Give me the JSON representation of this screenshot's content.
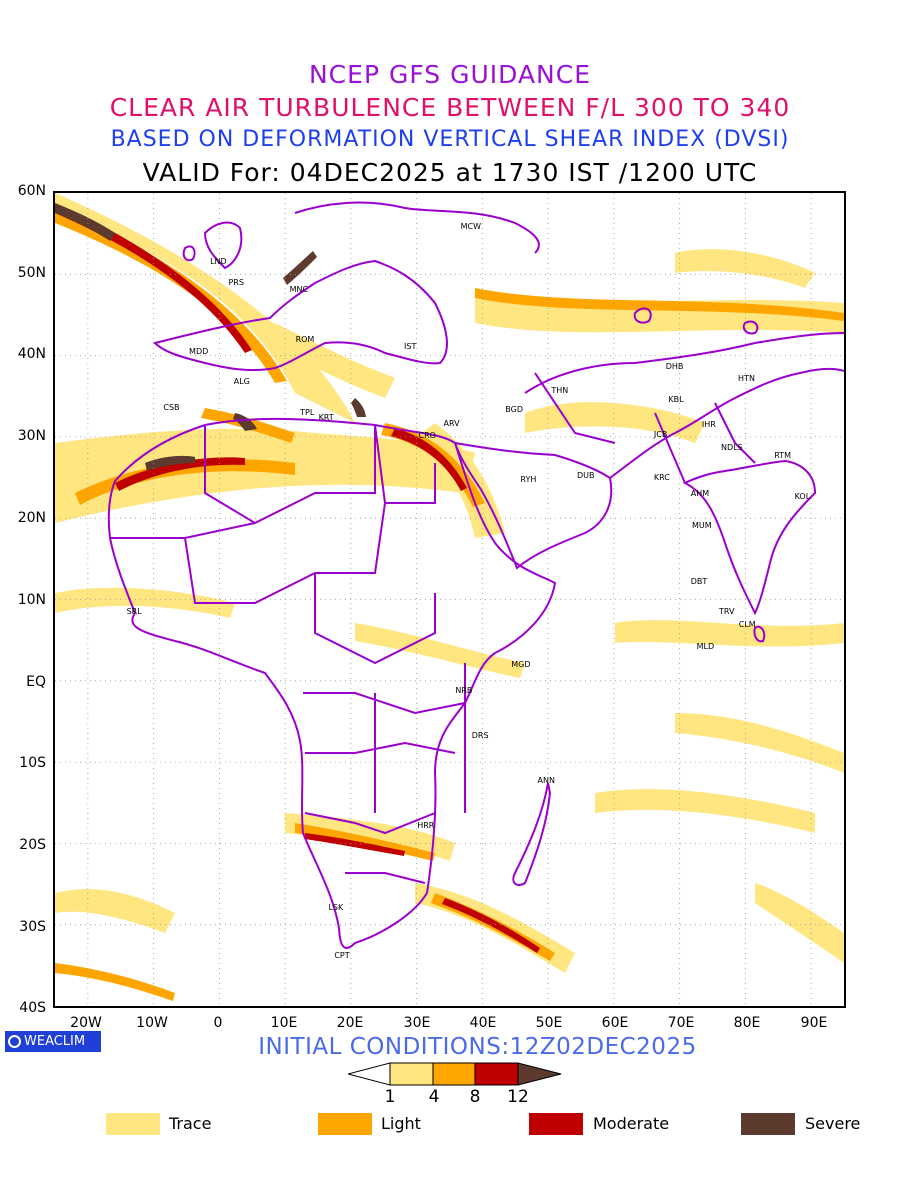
{
  "header": {
    "line1": "NCEP GFS GUIDANCE",
    "line2": "CLEAR AIR TURBULENCE BETWEEN F/L 300 TO 340",
    "line3": "BASED ON DEFORMATION VERTICAL SHEAR INDEX (DVSI)",
    "line4": "VALID For: 04DEC2025 at 1730 IST /1200 UTC"
  },
  "map": {
    "lon_range": [
      -25,
      95
    ],
    "lat_range": [
      -40,
      60
    ],
    "lat_labels": [
      "60N",
      "50N",
      "40N",
      "30N",
      "20N",
      "10N",
      "EQ",
      "10S",
      "20S",
      "30S",
      "40S"
    ],
    "lon_labels": [
      "20W",
      "10W",
      "0",
      "10E",
      "20E",
      "30E",
      "40E",
      "50E",
      "60E",
      "70E",
      "80E",
      "90E"
    ],
    "border_color": "#9b00cc",
    "stations": [
      {
        "code": "MCW",
        "lon": 37.6,
        "lat": 55.8
      },
      {
        "code": "LND",
        "lon": -0.5,
        "lat": 51.5
      },
      {
        "code": "PRS",
        "lon": 2.3,
        "lat": 48.9
      },
      {
        "code": "MNC",
        "lon": 11.6,
        "lat": 48.1
      },
      {
        "code": "ROM",
        "lon": 12.5,
        "lat": 41.9
      },
      {
        "code": "MDD",
        "lon": -3.7,
        "lat": 40.4
      },
      {
        "code": "IST",
        "lon": 29.0,
        "lat": 41.0
      },
      {
        "code": "ALG",
        "lon": 3.1,
        "lat": 36.7
      },
      {
        "code": "CSB",
        "lon": -7.6,
        "lat": 33.6
      },
      {
        "code": "TPL",
        "lon": 13.2,
        "lat": 32.9
      },
      {
        "code": "KRT",
        "lon": 16.0,
        "lat": 32.3
      },
      {
        "code": "ARV",
        "lon": 35.0,
        "lat": 31.6
      },
      {
        "code": "CRO",
        "lon": 31.2,
        "lat": 30.1
      },
      {
        "code": "BGD",
        "lon": 44.4,
        "lat": 33.3
      },
      {
        "code": "THN",
        "lon": 51.4,
        "lat": 35.7
      },
      {
        "code": "DHB",
        "lon": 68.8,
        "lat": 38.6
      },
      {
        "code": "HTN",
        "lon": 79.8,
        "lat": 37.1
      },
      {
        "code": "KBL",
        "lon": 69.2,
        "lat": 34.5
      },
      {
        "code": "IHR",
        "lon": 74.3,
        "lat": 31.5
      },
      {
        "code": "JCB",
        "lon": 67.0,
        "lat": 30.2
      },
      {
        "code": "NDLS",
        "lon": 77.2,
        "lat": 28.6
      },
      {
        "code": "RTM",
        "lon": 85.3,
        "lat": 27.7
      },
      {
        "code": "RYH",
        "lon": 46.7,
        "lat": 24.7
      },
      {
        "code": "DUB",
        "lon": 55.3,
        "lat": 25.2
      },
      {
        "code": "KRC",
        "lon": 67.0,
        "lat": 24.9
      },
      {
        "code": "AHM",
        "lon": 72.6,
        "lat": 23.0
      },
      {
        "code": "KOL",
        "lon": 88.4,
        "lat": 22.6
      },
      {
        "code": "MUM",
        "lon": 72.8,
        "lat": 19.1
      },
      {
        "code": "DBT",
        "lon": 72.6,
        "lat": 12.1
      },
      {
        "code": "TRV",
        "lon": 76.9,
        "lat": 8.5
      },
      {
        "code": "CLM",
        "lon": 79.9,
        "lat": 6.9
      },
      {
        "code": "MLD",
        "lon": 73.5,
        "lat": 4.2
      },
      {
        "code": "SRL",
        "lon": -13.2,
        "lat": 8.5
      },
      {
        "code": "MGD",
        "lon": 45.3,
        "lat": 2.0
      },
      {
        "code": "NRB",
        "lon": 36.8,
        "lat": -1.3
      },
      {
        "code": "DRS",
        "lon": 39.3,
        "lat": -6.8
      },
      {
        "code": "ANN",
        "lon": 49.3,
        "lat": -12.3
      },
      {
        "code": "HRR",
        "lon": 31.0,
        "lat": -17.8
      },
      {
        "code": "LSK",
        "lon": 17.5,
        "lat": -28.0
      },
      {
        "code": "CPT",
        "lon": 18.4,
        "lat": -33.9
      }
    ]
  },
  "initial_conditions": "INITIAL CONDITIONS:12Z02DEC2025",
  "colorbar": {
    "tick_labels": [
      "1",
      "4",
      "8",
      "12"
    ],
    "colors": [
      "#ffe680",
      "#ffa500",
      "#c00000",
      "#5c3a2e"
    ]
  },
  "legend": [
    {
      "label": "Trace",
      "color": "#ffe680"
    },
    {
      "label": "Light",
      "color": "#ffa500"
    },
    {
      "label": "Moderate",
      "color": "#c00000"
    },
    {
      "label": "Severe",
      "color": "#5c3a2e"
    }
  ],
  "logo": {
    "text": "WEACLIM"
  }
}
